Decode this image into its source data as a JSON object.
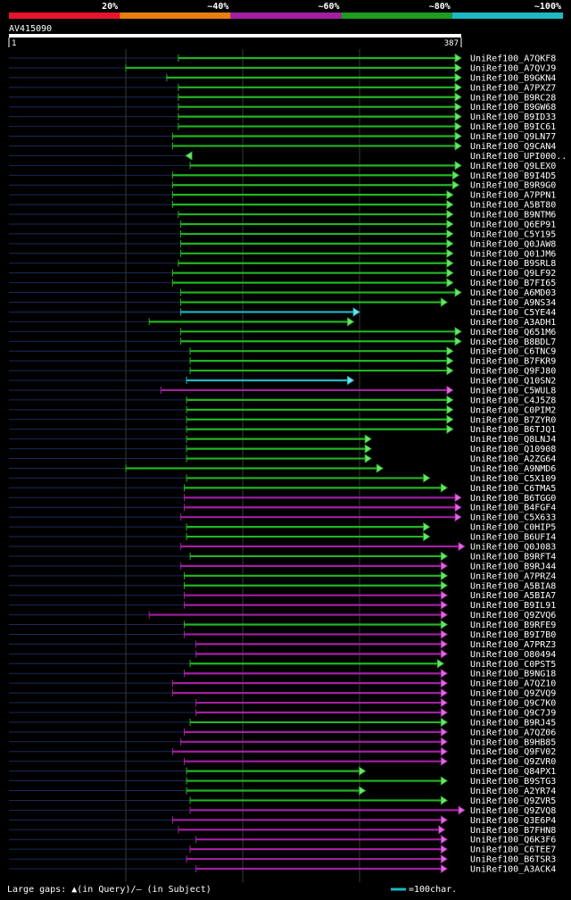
{
  "legend": {
    "segments": [
      {
        "label": "20%",
        "color": "#e8142b"
      },
      {
        "label": "~40%",
        "color": "#e87d12"
      },
      {
        "label": "~60%",
        "color": "#a21fa1"
      },
      {
        "label": "~80%",
        "color": "#1f9b1f"
      },
      {
        "label": "~100%",
        "color": "#1fb7c4"
      }
    ]
  },
  "query": {
    "name": "AV415090",
    "start": "1",
    "end": "387"
  },
  "footer": {
    "gaps_text": "Large gaps: ▲(in Query)/— (in Subject)",
    "scale_text": "=100char."
  },
  "chart_data": {
    "type": "alignment",
    "query_length": 387,
    "hits": [
      {
        "name": "UniRef100_A7QKF8",
        "start": 145,
        "end": 387,
        "color": "green",
        "arrow": "right"
      },
      {
        "name": "UniRef100_A7QVJ9",
        "start": 100,
        "end": 387,
        "color": "green",
        "arrow": "right"
      },
      {
        "name": "UniRef100_B9GKN4",
        "start": 135,
        "end": 387,
        "color": "green",
        "arrow": "right"
      },
      {
        "name": "UniRef100_A7PXZ7",
        "start": 145,
        "end": 387,
        "color": "green",
        "arrow": "right"
      },
      {
        "name": "UniRef100_B9RC28",
        "start": 145,
        "end": 387,
        "color": "green",
        "arrow": "right"
      },
      {
        "name": "UniRef100_B9GW68",
        "start": 145,
        "end": 387,
        "color": "green",
        "arrow": "right"
      },
      {
        "name": "UniRef100_B9ID33",
        "start": 145,
        "end": 387,
        "color": "green",
        "arrow": "right"
      },
      {
        "name": "UniRef100_B9IC61",
        "start": 145,
        "end": 387,
        "color": "green",
        "arrow": "right"
      },
      {
        "name": "UniRef100_Q9LN77",
        "start": 140,
        "end": 387,
        "color": "green",
        "arrow": "right"
      },
      {
        "name": "UniRef100_Q9CAN4",
        "start": 140,
        "end": 387,
        "color": "green",
        "arrow": "right"
      },
      {
        "name": "UniRef100_UPI000..",
        "start": 155,
        "end": 152,
        "color": "green",
        "arrow": "left"
      },
      {
        "name": "UniRef100_Q9LEX0",
        "start": 155,
        "end": 387,
        "color": "green",
        "arrow": "right"
      },
      {
        "name": "UniRef100_B9I4D5",
        "start": 140,
        "end": 385,
        "color": "green",
        "arrow": "right"
      },
      {
        "name": "UniRef100_B9R9G0",
        "start": 140,
        "end": 385,
        "color": "green",
        "arrow": "right"
      },
      {
        "name": "UniRef100_A7PPN1",
        "start": 140,
        "end": 380,
        "color": "green",
        "arrow": "right"
      },
      {
        "name": "UniRef100_A5BT80",
        "start": 140,
        "end": 380,
        "color": "green",
        "arrow": "right"
      },
      {
        "name": "UniRef100_B9NTM6",
        "start": 145,
        "end": 380,
        "color": "green",
        "arrow": "right"
      },
      {
        "name": "UniRef100_Q6EP91",
        "start": 147,
        "end": 380,
        "color": "green",
        "arrow": "right"
      },
      {
        "name": "UniRef100_C5Y195",
        "start": 147,
        "end": 380,
        "color": "green",
        "arrow": "right"
      },
      {
        "name": "UniRef100_Q0JAW8",
        "start": 147,
        "end": 380,
        "color": "green",
        "arrow": "right"
      },
      {
        "name": "UniRef100_Q01JM6",
        "start": 147,
        "end": 380,
        "color": "green",
        "arrow": "right"
      },
      {
        "name": "UniRef100_B9SRL8",
        "start": 145,
        "end": 380,
        "color": "green",
        "arrow": "right"
      },
      {
        "name": "UniRef100_Q9LF92",
        "start": 140,
        "end": 380,
        "color": "green",
        "arrow": "right"
      },
      {
        "name": "UniRef100_B7FI65",
        "start": 140,
        "end": 380,
        "color": "green",
        "arrow": "right"
      },
      {
        "name": "UniRef100_A6MD03",
        "start": 147,
        "end": 387,
        "color": "green",
        "arrow": "right"
      },
      {
        "name": "UniRef100_A9NS34",
        "start": 147,
        "end": 375,
        "color": "green",
        "arrow": "right"
      },
      {
        "name": "UniRef100_C5YE44",
        "start": 147,
        "end": 300,
        "color": "cyan",
        "arrow": "right"
      },
      {
        "name": "UniRef100_A3ADH1",
        "start": 120,
        "end": 295,
        "color": "green",
        "arrow": "right"
      },
      {
        "name": "UniRef100_Q651M6",
        "start": 147,
        "end": 387,
        "color": "green",
        "arrow": "right"
      },
      {
        "name": "UniRef100_B8BDL7",
        "start": 147,
        "end": 387,
        "color": "green",
        "arrow": "right"
      },
      {
        "name": "UniRef100_C6TNC9",
        "start": 155,
        "end": 380,
        "color": "green",
        "arrow": "right"
      },
      {
        "name": "UniRef100_B7FKR9",
        "start": 155,
        "end": 380,
        "color": "green",
        "arrow": "right"
      },
      {
        "name": "UniRef100_Q9FJ80",
        "start": 155,
        "end": 380,
        "color": "green",
        "arrow": "right"
      },
      {
        "name": "UniRef100_Q10SN2",
        "start": 152,
        "end": 295,
        "color": "cyan",
        "arrow": "right"
      },
      {
        "name": "UniRef100_C5WUL8",
        "start": 130,
        "end": 380,
        "color": "magenta",
        "arrow": "right"
      },
      {
        "name": "UniRef100_C4J5Z8",
        "start": 152,
        "end": 380,
        "color": "green",
        "arrow": "right"
      },
      {
        "name": "UniRef100_C0PIM2",
        "start": 152,
        "end": 380,
        "color": "green",
        "arrow": "right"
      },
      {
        "name": "UniRef100_B7ZYR0",
        "start": 152,
        "end": 380,
        "color": "green",
        "arrow": "right"
      },
      {
        "name": "UniRef100_B6TJQ1",
        "start": 152,
        "end": 380,
        "color": "green",
        "arrow": "right"
      },
      {
        "name": "UniRef100_Q8LNJ4",
        "start": 152,
        "end": 310,
        "color": "green",
        "arrow": "right"
      },
      {
        "name": "UniRef100_Q10908",
        "start": 152,
        "end": 310,
        "color": "green",
        "arrow": "right"
      },
      {
        "name": "UniRef100_A2ZG64",
        "start": 152,
        "end": 310,
        "color": "green",
        "arrow": "right"
      },
      {
        "name": "UniRef100_A9NMD6",
        "start": 100,
        "end": 320,
        "color": "green",
        "arrow": "right"
      },
      {
        "name": "UniRef100_C5X109",
        "start": 152,
        "end": 360,
        "color": "green",
        "arrow": "right"
      },
      {
        "name": "UniRef100_C6TMA5",
        "start": 150,
        "end": 375,
        "color": "green",
        "arrow": "right"
      },
      {
        "name": "UniRef100_B6TGG0",
        "start": 150,
        "end": 387,
        "color": "magenta",
        "arrow": "right"
      },
      {
        "name": "UniRef100_B4FGF4",
        "start": 150,
        "end": 387,
        "color": "magenta",
        "arrow": "right"
      },
      {
        "name": "UniRef100_C5X633",
        "start": 147,
        "end": 387,
        "color": "magenta",
        "arrow": "right"
      },
      {
        "name": "UniRef100_C0HIP5",
        "start": 152,
        "end": 360,
        "color": "green",
        "arrow": "right"
      },
      {
        "name": "UniRef100_B6UFI4",
        "start": 152,
        "end": 360,
        "color": "green",
        "arrow": "right"
      },
      {
        "name": "UniRef100_Q0J083",
        "start": 147,
        "end": 390,
        "color": "magenta",
        "arrow": "right"
      },
      {
        "name": "UniRef100_B9RFT4",
        "start": 155,
        "end": 375,
        "color": "green",
        "arrow": "right"
      },
      {
        "name": "UniRef100_B9RJ44",
        "start": 147,
        "end": 375,
        "color": "magenta",
        "arrow": "right"
      },
      {
        "name": "UniRef100_A7PRZ4",
        "start": 150,
        "end": 375,
        "color": "green",
        "arrow": "right"
      },
      {
        "name": "UniRef100_A5BIA8",
        "start": 150,
        "end": 375,
        "color": "green",
        "arrow": "right"
      },
      {
        "name": "UniRef100_A5BIA7",
        "start": 150,
        "end": 375,
        "color": "magenta",
        "arrow": "right"
      },
      {
        "name": "UniRef100_B9IL91",
        "start": 150,
        "end": 375,
        "color": "magenta",
        "arrow": "right"
      },
      {
        "name": "UniRef100_Q9ZVQ6",
        "start": 120,
        "end": 375,
        "color": "magenta",
        "arrow": "right"
      },
      {
        "name": "UniRef100_B9RFE9",
        "start": 150,
        "end": 375,
        "color": "green",
        "arrow": "right"
      },
      {
        "name": "UniRef100_B9I7B0",
        "start": 150,
        "end": 375,
        "color": "magenta",
        "arrow": "right"
      },
      {
        "name": "UniRef100_A7PRZ3",
        "start": 160,
        "end": 375,
        "color": "magenta",
        "arrow": "right"
      },
      {
        "name": "UniRef100_O80494",
        "start": 160,
        "end": 375,
        "color": "magenta",
        "arrow": "right"
      },
      {
        "name": "UniRef100_C0PST5",
        "start": 155,
        "end": 372,
        "color": "green",
        "arrow": "right"
      },
      {
        "name": "UniRef100_B9NG18",
        "start": 150,
        "end": 375,
        "color": "magenta",
        "arrow": "right"
      },
      {
        "name": "UniRef100_A7QZ10",
        "start": 140,
        "end": 375,
        "color": "magenta",
        "arrow": "right"
      },
      {
        "name": "UniRef100_Q9ZVQ9",
        "start": 140,
        "end": 375,
        "color": "magenta",
        "arrow": "right"
      },
      {
        "name": "UniRef100_Q9C7K0",
        "start": 160,
        "end": 375,
        "color": "magenta",
        "arrow": "right"
      },
      {
        "name": "UniRef100_Q9C7J9",
        "start": 160,
        "end": 375,
        "color": "magenta",
        "arrow": "right"
      },
      {
        "name": "UniRef100_B9RJ45",
        "start": 155,
        "end": 375,
        "color": "green",
        "arrow": "right"
      },
      {
        "name": "UniRef100_A7QZ06",
        "start": 150,
        "end": 375,
        "color": "magenta",
        "arrow": "right"
      },
      {
        "name": "UniRef100_B9HB85",
        "start": 147,
        "end": 375,
        "color": "magenta",
        "arrow": "right"
      },
      {
        "name": "UniRef100_Q9FV02",
        "start": 140,
        "end": 375,
        "color": "magenta",
        "arrow": "right"
      },
      {
        "name": "UniRef100_Q9ZVR0",
        "start": 150,
        "end": 375,
        "color": "magenta",
        "arrow": "right"
      },
      {
        "name": "UniRef100_Q84PX1",
        "start": 152,
        "end": 305,
        "color": "green",
        "arrow": "right"
      },
      {
        "name": "UniRef100_B9STG3",
        "start": 152,
        "end": 375,
        "color": "green",
        "arrow": "right"
      },
      {
        "name": "UniRef100_A2YR74",
        "start": 152,
        "end": 305,
        "color": "green",
        "arrow": "right"
      },
      {
        "name": "UniRef100_Q9ZVR5",
        "start": 155,
        "end": 375,
        "color": "green",
        "arrow": "right"
      },
      {
        "name": "UniRef100_Q9ZVQ8",
        "start": 155,
        "end": 390,
        "color": "magenta",
        "arrow": "right"
      },
      {
        "name": "UniRef100_Q3E6P4",
        "start": 140,
        "end": 375,
        "color": "magenta",
        "arrow": "right"
      },
      {
        "name": "UniRef100_B7FHN8",
        "start": 145,
        "end": 373,
        "color": "magenta",
        "arrow": "right"
      },
      {
        "name": "UniRef100_Q6K3F6",
        "start": 160,
        "end": 375,
        "color": "magenta",
        "arrow": "right"
      },
      {
        "name": "UniRef100_C6TEE7",
        "start": 155,
        "end": 375,
        "color": "magenta",
        "arrow": "right"
      },
      {
        "name": "UniRef100_B6TSR3",
        "start": 152,
        "end": 375,
        "color": "magenta",
        "arrow": "right"
      },
      {
        "name": "UniRef100_A3ACK4",
        "start": 160,
        "end": 375,
        "color": "magenta",
        "arrow": "right"
      }
    ]
  }
}
